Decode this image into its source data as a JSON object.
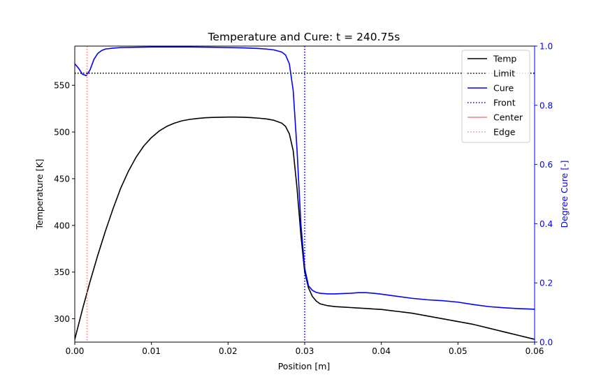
{
  "chart_data": {
    "type": "line",
    "title": "Temperature and Cure: t = 240.75s",
    "xlabel": "Position [m]",
    "ylabel": "Temperature [K]",
    "y2label": "Degree Cure [-]",
    "xlim": [
      0.0,
      0.06
    ],
    "ylim": [
      275,
      592
    ],
    "y2lim": [
      0.0,
      1.0
    ],
    "xticks": [
      "0.00",
      "0.01",
      "0.02",
      "0.03",
      "0.04",
      "0.05",
      "0.06"
    ],
    "xtick_values": [
      0.0,
      0.01,
      0.02,
      0.03,
      0.04,
      0.05,
      0.06
    ],
    "yticks": [
      "300",
      "350",
      "400",
      "450",
      "500",
      "550"
    ],
    "ytick_values": [
      300,
      350,
      400,
      450,
      500,
      550
    ],
    "y2ticks": [
      "0.0",
      "0.2",
      "0.4",
      "0.6",
      "0.8",
      "1.0"
    ],
    "y2tick_values": [
      0.0,
      0.2,
      0.4,
      0.6,
      0.8,
      1.0
    ],
    "grid": false,
    "legend_placement": "top-right",
    "colors": {
      "temp": "#000000",
      "cure": "#0000ff",
      "center": "#f08080",
      "axis2": "#0000ff"
    },
    "series": [
      {
        "name": "Temp",
        "axis": "left",
        "style": "solid",
        "x": [
          0.0,
          0.001,
          0.002,
          0.003,
          0.004,
          0.005,
          0.006,
          0.007,
          0.008,
          0.009,
          0.01,
          0.011,
          0.012,
          0.013,
          0.014,
          0.015,
          0.016,
          0.017,
          0.018,
          0.019,
          0.02,
          0.021,
          0.022,
          0.023,
          0.024,
          0.025,
          0.026,
          0.027,
          0.0275,
          0.028,
          0.0285,
          0.029,
          0.0295,
          0.03,
          0.0305,
          0.031,
          0.0315,
          0.032,
          0.033,
          0.034,
          0.035,
          0.036,
          0.037,
          0.038,
          0.039,
          0.04,
          0.041,
          0.042,
          0.043,
          0.044,
          0.045,
          0.046,
          0.047,
          0.048,
          0.049,
          0.05,
          0.051,
          0.052,
          0.053,
          0.054,
          0.055,
          0.056,
          0.057,
          0.058,
          0.059,
          0.06
        ],
        "y": [
          278,
          310,
          340,
          368,
          394,
          418,
          440,
          458,
          473,
          485,
          494,
          501,
          506,
          509.5,
          512,
          513.5,
          514.5,
          515.2,
          515.6,
          515.8,
          516,
          516,
          515.8,
          515.4,
          514.8,
          514,
          512.5,
          509.5,
          506,
          498,
          480,
          440,
          390,
          350,
          333,
          324,
          319,
          316,
          314,
          313,
          312.5,
          312,
          311.5,
          311,
          310.5,
          310,
          309,
          308,
          307,
          306,
          304.5,
          303,
          301.5,
          300,
          298.5,
          297,
          295.5,
          294,
          292,
          290,
          288,
          286,
          284,
          282,
          280,
          278
        ]
      },
      {
        "name": "Limit",
        "axis": "left",
        "style": "dotted",
        "x": [
          0.0,
          0.06
        ],
        "y": [
          563,
          563
        ]
      },
      {
        "name": "Cure",
        "axis": "right",
        "style": "solid",
        "x": [
          0.0,
          0.0005,
          0.001,
          0.0015,
          0.002,
          0.0025,
          0.003,
          0.0035,
          0.004,
          0.005,
          0.006,
          0.008,
          0.01,
          0.012,
          0.015,
          0.018,
          0.02,
          0.022,
          0.024,
          0.025,
          0.026,
          0.027,
          0.0275,
          0.028,
          0.0285,
          0.029,
          0.0295,
          0.03,
          0.0305,
          0.031,
          0.0315,
          0.032,
          0.033,
          0.034,
          0.035,
          0.036,
          0.037,
          0.038,
          0.039,
          0.04,
          0.042,
          0.044,
          0.046,
          0.048,
          0.05,
          0.052,
          0.054,
          0.056,
          0.058,
          0.06
        ],
        "y": [
          0.94,
          0.925,
          0.905,
          0.9,
          0.92,
          0.955,
          0.975,
          0.985,
          0.99,
          0.993,
          0.995,
          0.996,
          0.997,
          0.997,
          0.997,
          0.996,
          0.995,
          0.994,
          0.992,
          0.99,
          0.987,
          0.98,
          0.97,
          0.94,
          0.85,
          0.65,
          0.4,
          0.25,
          0.19,
          0.175,
          0.168,
          0.165,
          0.163,
          0.163,
          0.164,
          0.165,
          0.167,
          0.167,
          0.165,
          0.162,
          0.155,
          0.148,
          0.143,
          0.14,
          0.135,
          0.127,
          0.12,
          0.116,
          0.113,
          0.111
        ]
      },
      {
        "name": "Front",
        "axis": "right",
        "style": "dotted",
        "vertical_x": 0.03
      },
      {
        "name": "Center",
        "axis": "left",
        "style": "solid",
        "hidden": true
      },
      {
        "name": "Edge",
        "axis": "left",
        "style": "dotted",
        "vertical_x": 0.0016
      }
    ]
  }
}
